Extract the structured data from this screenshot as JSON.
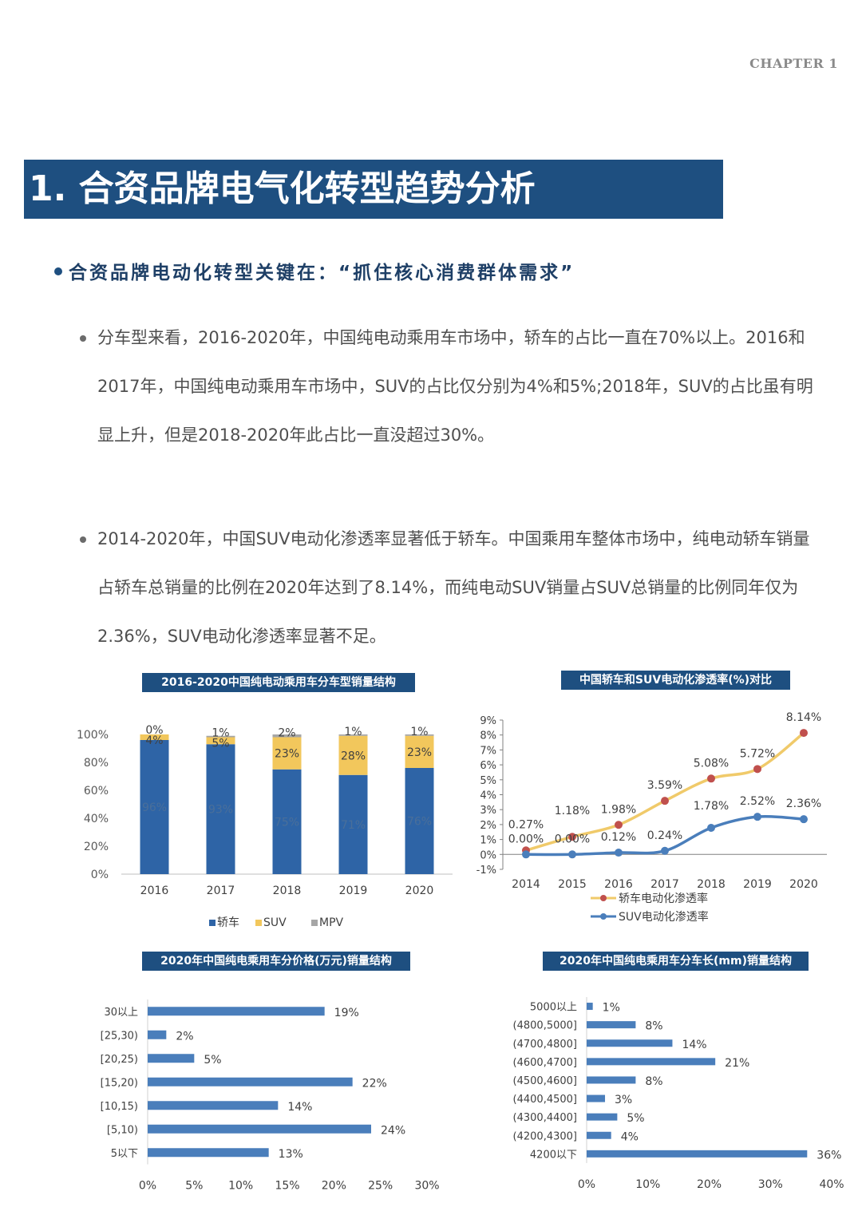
{
  "page": {
    "chapter": "CHAPTER 1",
    "title": "1. 合资品牌电气化转型趋势分析",
    "subheading": "合资品牌电动化转型关键在：“抓住核心消费群体需求”",
    "paragraphs": [
      "分车型来看，2016-2020年，中国纯电动乘用车市场中，轿车的占比一直在70%以上。2016和2017年，中国纯电动乘用车市场中，SUV的占比仅分别为4%和5%;2018年，SUV的占比虽有明显上升，但是2018-2020年此占比一直没超过30%。",
      "2014-2020年，中国SUV电动化渗透率显著低于轿车。中国乘用车整体市场中，纯电动轿车销量占轿车总销量的比例在2020年达到了8.14%，而纯电动SUV销量占SUV总销量的比例同年仅为2.36%，SUV电动化渗透率显著不足。"
    ]
  },
  "chart_data": [
    {
      "type": "bar",
      "stacked": true,
      "title": "2016-2020中国纯电动乘用车分车型销量结构",
      "categories": [
        "2016",
        "2017",
        "2018",
        "2019",
        "2020"
      ],
      "series": [
        {
          "name": "轿车",
          "color": "#2e64a6",
          "values": [
            96,
            93,
            75,
            71,
            76
          ],
          "labels": [
            "96%",
            "93%",
            "75%",
            "71%",
            "76%"
          ]
        },
        {
          "name": "SUV",
          "color": "#f2c75c",
          "values": [
            4,
            5,
            23,
            28,
            23
          ],
          "labels": [
            "4%",
            "5%",
            "23%",
            "28%",
            "23%"
          ]
        },
        {
          "name": "MPV",
          "color": "#a6a6a6",
          "values": [
            0,
            1,
            2,
            1,
            1
          ],
          "labels": [
            "0%",
            "1%",
            "2%",
            "1%",
            "1%"
          ]
        }
      ],
      "y_ticks": [
        "0%",
        "20%",
        "40%",
        "60%",
        "80%",
        "100%"
      ],
      "ylim": [
        0,
        100
      ]
    },
    {
      "type": "line",
      "title": "中国轿车和SUV电动化渗透率(%)对比",
      "x": [
        "2014",
        "2015",
        "2016",
        "2017",
        "2018",
        "2019",
        "2020"
      ],
      "series": [
        {
          "name": "轿车电动化渗透率",
          "line_color": "#f0ca6a",
          "marker_color": "#c0504d",
          "values": [
            0.27,
            1.18,
            1.98,
            3.59,
            5.08,
            5.72,
            8.14
          ],
          "labels": [
            "0.27%",
            "1.18%",
            "1.98%",
            "3.59%",
            "5.08%",
            "5.72%",
            "8.14%"
          ]
        },
        {
          "name": "SUV电动化渗透率",
          "line_color": "#4a7ebb",
          "marker_color": "#4a7ebb",
          "values": [
            0.0,
            0.0,
            0.12,
            0.24,
            1.78,
            2.52,
            2.36
          ],
          "labels": [
            "0.00%",
            "0.00%",
            "0.12%",
            "0.24%",
            "1.78%",
            "2.52%",
            "2.36%"
          ]
        }
      ],
      "y_ticks": [
        "-1%",
        "0%",
        "1%",
        "2%",
        "3%",
        "4%",
        "5%",
        "6%",
        "7%",
        "8%",
        "9%"
      ],
      "ylim": [
        -1,
        9
      ]
    },
    {
      "type": "bar",
      "orientation": "horizontal",
      "title": "2020年中国纯电乘用车分价格(万元)销量结构",
      "categories": [
        "30以上",
        "[25,30)",
        "[20,25)",
        "[15,20)",
        "[10,15)",
        "[5,10)",
        "5以下"
      ],
      "values": [
        19,
        2,
        5,
        22,
        14,
        24,
        13
      ],
      "labels": [
        "19%",
        "2%",
        "5%",
        "22%",
        "14%",
        "24%",
        "13%"
      ],
      "x_ticks": [
        "0%",
        "5%",
        "10%",
        "15%",
        "20%",
        "25%",
        "30%"
      ],
      "xlim": [
        0,
        30
      ],
      "color": "#4a7ebb"
    },
    {
      "type": "bar",
      "orientation": "horizontal",
      "title": "2020年中国纯电乘用车分车长(mm)销量结构",
      "categories": [
        "5000以上",
        "(4800,5000]",
        "(4700,4800]",
        "(4600,4700]",
        "(4500,4600]",
        "(4400,4500]",
        "(4300,4400]",
        "(4200,4300]",
        "4200以下"
      ],
      "values": [
        1,
        8,
        14,
        21,
        8,
        3,
        5,
        4,
        36
      ],
      "labels": [
        "1%",
        "8%",
        "14%",
        "21%",
        "8%",
        "3%",
        "5%",
        "4%",
        "36%"
      ],
      "x_ticks": [
        "0%",
        "10%",
        "20%",
        "30%",
        "40%"
      ],
      "xlim": [
        0,
        40
      ],
      "color": "#4a7ebb"
    }
  ]
}
